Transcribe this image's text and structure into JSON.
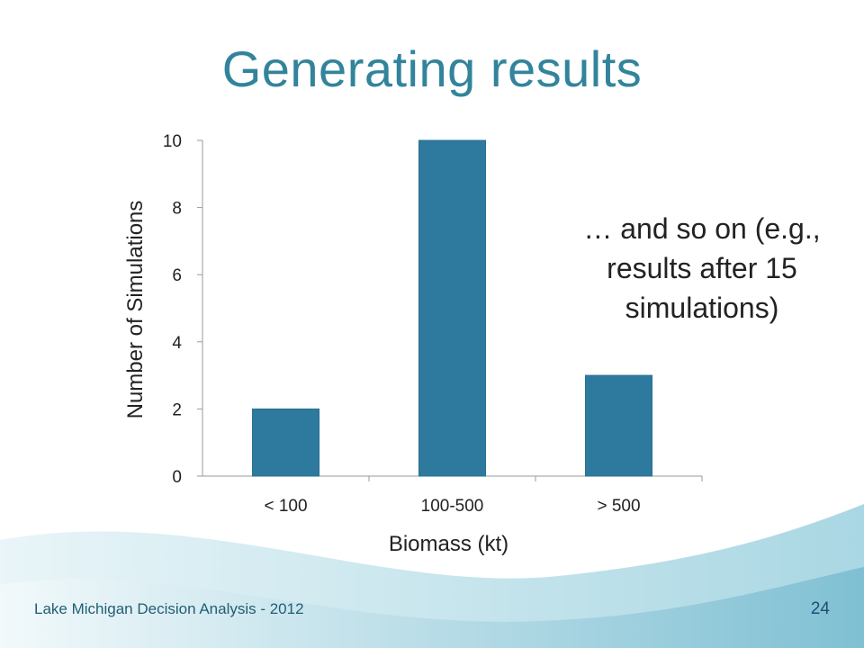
{
  "slide": {
    "title": "Generating results",
    "annotation": "… and so on (e.g., results after 15 simulations)",
    "footer": "Lake Michigan Decision Analysis - 2012",
    "page_number": "24"
  },
  "colors": {
    "title": "#31849B",
    "bar": "#2E7A9E",
    "wave_light": "#CDE7EF",
    "wave_mid": "#9FCFDD"
  },
  "chart_data": {
    "type": "bar",
    "categories": [
      "< 100",
      "100-500",
      "> 500"
    ],
    "values": [
      2,
      10,
      3
    ],
    "xlabel": "Biomass (kt)",
    "ylabel": "Number of Simulations",
    "ylim": [
      0,
      10
    ],
    "yticks": [
      "0",
      "2",
      "4",
      "6",
      "8",
      "10"
    ],
    "grid": false,
    "legend": "none"
  }
}
